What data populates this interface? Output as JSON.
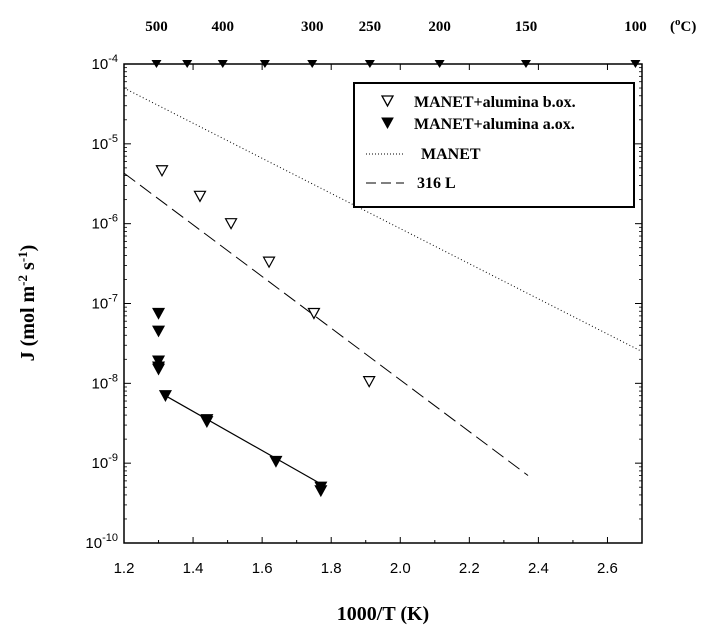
{
  "chart_data": {
    "type": "scatter",
    "xlabel": "1000/T (K)",
    "ylabel_parts": {
      "main": "J (mol m",
      "e1": "-2",
      "mid": " s",
      "e2": "-1",
      "end": ")"
    },
    "xlim": [
      1.2,
      2.7
    ],
    "ylim": [
      1e-10,
      0.0001
    ],
    "yscale": "log",
    "x_ticks": [
      1.2,
      1.4,
      1.6,
      1.8,
      2.0,
      2.2,
      2.4,
      2.6
    ],
    "x_tick_labels": [
      "1.2",
      "1.4",
      "1.6",
      "1.8",
      "2.0",
      "2.2",
      "2.4",
      "2.6"
    ],
    "y_ticks": [
      {
        "value": 1e-10,
        "base": "10",
        "exp": "-10"
      },
      {
        "value": 1e-09,
        "base": "10",
        "exp": "-9"
      },
      {
        "value": 1e-08,
        "base": "10",
        "exp": "-8"
      },
      {
        "value": 1e-07,
        "base": "10",
        "exp": "-7"
      },
      {
        "value": 1e-06,
        "base": "10",
        "exp": "-6"
      },
      {
        "value": 1e-05,
        "base": "10",
        "exp": "-5"
      },
      {
        "value": 0.0001,
        "base": "10",
        "exp": "-4"
      }
    ],
    "top_axis": {
      "unit_label": "(oC)",
      "ticks": [
        {
          "label": "500",
          "x": 1.294
        },
        {
          "label": "400",
          "x": 1.486
        },
        {
          "label": "300",
          "x": 1.745
        },
        {
          "label": "250",
          "x": 1.912
        },
        {
          "label": "200",
          "x": 2.114
        },
        {
          "label": "150",
          "x": 2.364
        },
        {
          "label": "100",
          "x": 2.681
        }
      ],
      "extra_markers_x": [
        1.383,
        1.608
      ]
    },
    "series": [
      {
        "name": "MANET+alumina b.ox.",
        "marker": "open-triangle-down",
        "points": [
          {
            "x": 1.31,
            "y": 4.6e-06
          },
          {
            "x": 1.42,
            "y": 2.2e-06
          },
          {
            "x": 1.51,
            "y": 1e-06
          },
          {
            "x": 1.62,
            "y": 3.3e-07
          },
          {
            "x": 1.75,
            "y": 7.5e-08
          },
          {
            "x": 1.91,
            "y": 1.05e-08
          }
        ]
      },
      {
        "name": "MANET+alumina a.ox.",
        "marker": "filled-triangle-down",
        "points": [
          {
            "x": 1.3,
            "y": 7.5e-08
          },
          {
            "x": 1.3,
            "y": 4.5e-08
          },
          {
            "x": 1.3,
            "y": 1.9e-08
          },
          {
            "x": 1.3,
            "y": 1.6e-08
          },
          {
            "x": 1.3,
            "y": 1.5e-08
          },
          {
            "x": 1.32,
            "y": 7e-09
          },
          {
            "x": 1.44,
            "y": 3.5e-09
          },
          {
            "x": 1.44,
            "y": 3.3e-09
          },
          {
            "x": 1.64,
            "y": 1.05e-09
          },
          {
            "x": 1.77,
            "y": 5e-10
          },
          {
            "x": 1.77,
            "y": 4.5e-10
          }
        ],
        "fit_line": [
          {
            "x": 1.32,
            "y": 7e-09
          },
          {
            "x": 1.77,
            "y": 5.5e-10
          }
        ]
      },
      {
        "name": "MANET",
        "style": "dotted",
        "line": [
          {
            "x": 1.2,
            "y": 5e-05
          },
          {
            "x": 2.7,
            "y": 2.5e-08
          }
        ]
      },
      {
        "name": "316 L",
        "style": "dashed",
        "line": [
          {
            "x": 1.2,
            "y": 4.3e-06
          },
          {
            "x": 2.37,
            "y": 7e-10
          }
        ]
      }
    ],
    "legend_position": "top-right"
  }
}
